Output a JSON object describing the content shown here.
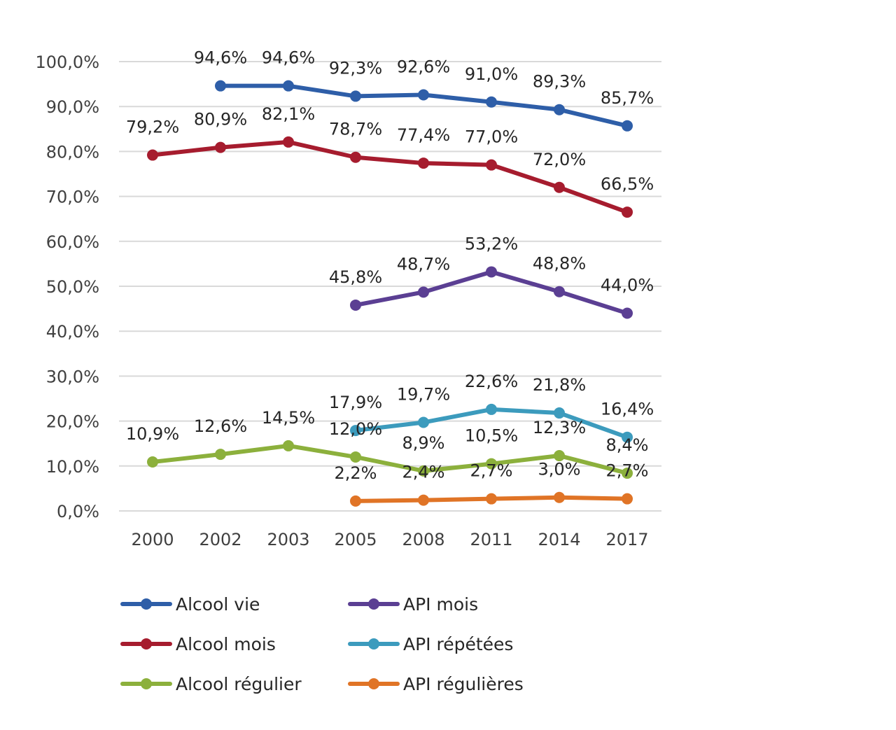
{
  "chart_data": {
    "type": "line",
    "categories": [
      "2000",
      "2002",
      "2003",
      "2005",
      "2008",
      "2011",
      "2014",
      "2017"
    ],
    "ylim": [
      0,
      100
    ],
    "yticks": [
      "0,0%",
      "10,0%",
      "20,0%",
      "30,0%",
      "40,0%",
      "50,0%",
      "60,0%",
      "70,0%",
      "80,0%",
      "90,0%",
      "100,0%"
    ],
    "grid": true,
    "legend_position": "bottom",
    "series": [
      {
        "name": "Alcool vie",
        "color": "#2e5ea8",
        "values": [
          null,
          94.6,
          94.6,
          92.3,
          92.6,
          91.0,
          89.3,
          85.7
        ],
        "labels": [
          null,
          "94,6%",
          "94,6%",
          "92,3%",
          "92,6%",
          "91,0%",
          "89,3%",
          "85,7%"
        ]
      },
      {
        "name": "Alcool mois",
        "color": "#a61c2e",
        "values": [
          79.2,
          80.9,
          82.1,
          78.7,
          77.4,
          77.0,
          72.0,
          66.5
        ],
        "labels": [
          "79,2%",
          "80,9%",
          "82,1%",
          "78,7%",
          "77,4%",
          "77,0%",
          "72,0%",
          "66,5%"
        ]
      },
      {
        "name": "Alcool régulier",
        "color": "#8cb03c",
        "values": [
          10.9,
          12.6,
          14.5,
          12.0,
          8.9,
          10.5,
          12.3,
          8.4
        ],
        "labels": [
          "10,9%",
          "12,6%",
          "14,5%",
          "12,0%",
          "8,9%",
          "10,5%",
          "12,3%",
          "8,4%"
        ]
      },
      {
        "name": "API mois",
        "color": "#5b3f93",
        "values": [
          null,
          null,
          null,
          45.8,
          48.7,
          53.2,
          48.8,
          44.0
        ],
        "labels": [
          null,
          null,
          null,
          "45,8%",
          "48,7%",
          "53,2%",
          "48,8%",
          "44,0%"
        ]
      },
      {
        "name": "API répétées",
        "color": "#3c9bbd",
        "values": [
          null,
          null,
          null,
          17.9,
          19.7,
          22.6,
          21.8,
          16.4
        ],
        "labels": [
          null,
          null,
          null,
          "17,9%",
          "19,7%",
          "22,6%",
          "21,8%",
          "16,4%"
        ]
      },
      {
        "name": "API régulières",
        "color": "#e07426",
        "values": [
          null,
          null,
          null,
          2.2,
          2.4,
          2.7,
          3.0,
          2.7
        ],
        "labels": [
          null,
          null,
          null,
          "2,2%",
          "2,4%",
          "2,7%",
          "3,0%",
          "2,7%"
        ]
      }
    ]
  }
}
